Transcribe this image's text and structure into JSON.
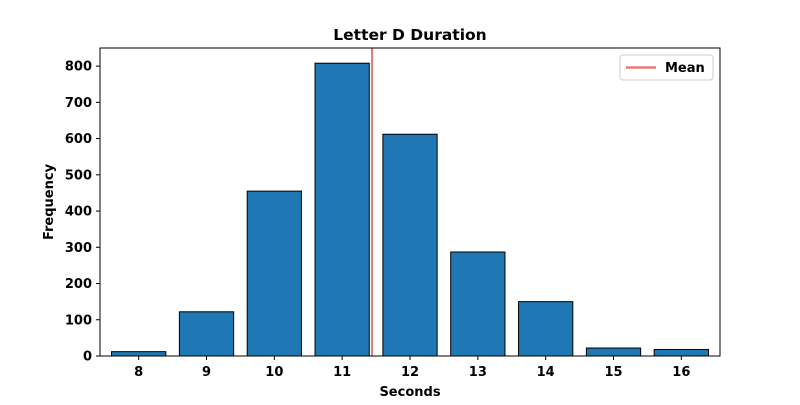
{
  "chart_data": {
    "type": "bar",
    "title": "Letter D Duration",
    "xlabel": "Seconds",
    "ylabel": "Frequency",
    "categories": [
      "8",
      "9",
      "10",
      "11",
      "12",
      "13",
      "14",
      "15",
      "16"
    ],
    "x": [
      8,
      9,
      10,
      11,
      12,
      13,
      14,
      15,
      16
    ],
    "values": [
      12,
      122,
      455,
      808,
      612,
      287,
      150,
      22,
      18
    ],
    "xlim": [
      7.43,
      16.57
    ],
    "ylim": [
      0,
      850
    ],
    "yticks": [
      0,
      100,
      200,
      300,
      400,
      500,
      600,
      700,
      800
    ],
    "bar_color": "#1f77b4",
    "bar_edge_color": "#000000",
    "mean": 11.44,
    "mean_line_color": "#e87a7a",
    "legend": {
      "position": "top-right",
      "entries": [
        "Mean"
      ]
    },
    "grid": false
  }
}
